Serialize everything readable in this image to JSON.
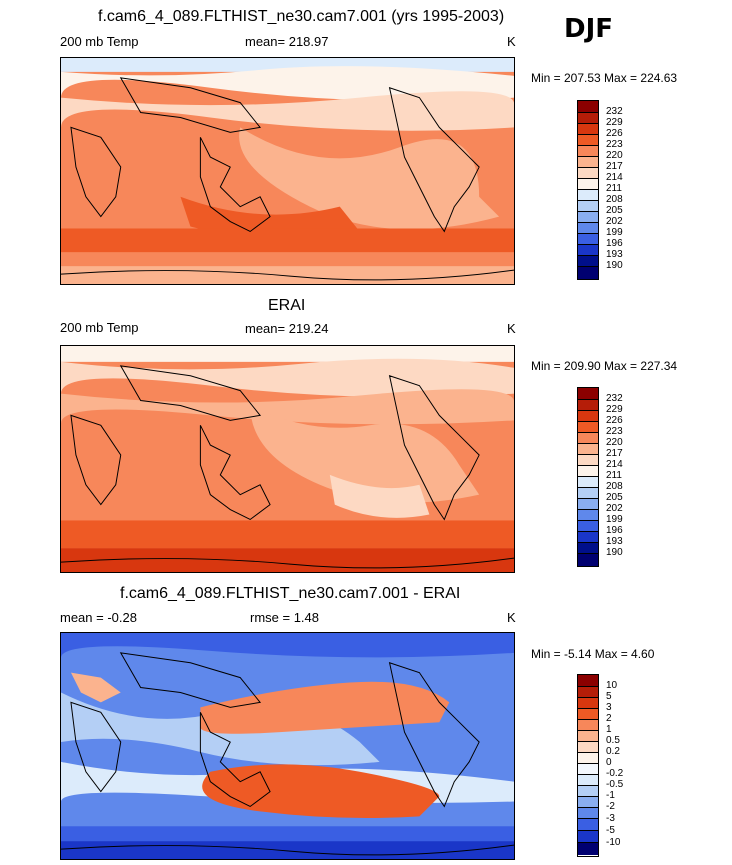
{
  "header": {
    "season": "DJF"
  },
  "panels": [
    {
      "id": "model",
      "title": "f.cam6_4_089.FLTHIST_ne30.cam7.001 (yrs 1995-2003)",
      "left_label": "200 mb Temp",
      "center_label": "mean= 218.97",
      "units": "K",
      "minmax": "Min = 207.53 Max = 224.63",
      "levels": [
        "232",
        "229",
        "226",
        "223",
        "220",
        "217",
        "214",
        "211",
        "208",
        "205",
        "202",
        "199",
        "196",
        "193",
        "190"
      ]
    },
    {
      "id": "obs",
      "title": "ERAI",
      "left_label": "200 mb Temp",
      "center_label": "mean= 219.24",
      "units": "K",
      "minmax": "Min = 209.90 Max = 227.34",
      "levels": [
        "232",
        "229",
        "226",
        "223",
        "220",
        "217",
        "214",
        "211",
        "208",
        "205",
        "202",
        "199",
        "196",
        "193",
        "190"
      ]
    },
    {
      "id": "diff",
      "title": "f.cam6_4_089.FLTHIST_ne30.cam7.001 - ERAI",
      "left_label": "mean =  -0.28",
      "center_label": "rmse =   1.48",
      "units": "K",
      "minmax": "Min =  -5.14 Max =   4.60",
      "levels": [
        "10",
        "5",
        "3",
        "2",
        "1",
        "0.5",
        "0.2",
        "0",
        "-0.2",
        "-0.5",
        "-1",
        "-2",
        "-3",
        "-5",
        "-10"
      ]
    }
  ],
  "colors": {
    "temp_scale": [
      "#8b0000",
      "#b51d08",
      "#d8370f",
      "#ee5a25",
      "#f7875a",
      "#fbb38e",
      "#fdd9c3",
      "#fdf3ea",
      "#dcebfb",
      "#b4cff5",
      "#8aaef0",
      "#5f88eb",
      "#3a5fe3",
      "#1a36c8",
      "#000f8a",
      "#000070"
    ],
    "diff_scale": [
      "#8b0000",
      "#b51d08",
      "#d8370f",
      "#ee5a25",
      "#f7875a",
      "#fbb38e",
      "#fdd9c3",
      "#fdf3ea",
      "#f3f7fd",
      "#dcebfb",
      "#b4cff5",
      "#8aaef0",
      "#5f88eb",
      "#3a5fe3",
      "#1a36c8",
      "#000070"
    ]
  },
  "chart_data": [
    {
      "type": "heatmap",
      "title": "f.cam6_4_089.FLTHIST_ne30.cam7.001 (yrs 1995-2003)",
      "variable": "200 mb Temp",
      "units": "K",
      "mean": 218.97,
      "min": 207.53,
      "max": 224.63,
      "contour_levels": [
        190,
        193,
        196,
        199,
        202,
        205,
        208,
        211,
        214,
        217,
        220,
        223,
        226,
        229,
        232
      ]
    },
    {
      "type": "heatmap",
      "title": "ERAI",
      "variable": "200 mb Temp",
      "units": "K",
      "mean": 219.24,
      "min": 209.9,
      "max": 227.34,
      "contour_levels": [
        190,
        193,
        196,
        199,
        202,
        205,
        208,
        211,
        214,
        217,
        220,
        223,
        226,
        229,
        232
      ]
    },
    {
      "type": "heatmap",
      "title": "f.cam6_4_089.FLTHIST_ne30.cam7.001 - ERAI",
      "units": "K",
      "mean": -0.28,
      "rmse": 1.48,
      "min": -5.14,
      "max": 4.6,
      "contour_levels": [
        -10,
        -5,
        -3,
        -2,
        -1,
        -0.5,
        -0.2,
        0,
        0.2,
        0.5,
        1,
        2,
        3,
        5,
        10
      ]
    }
  ]
}
